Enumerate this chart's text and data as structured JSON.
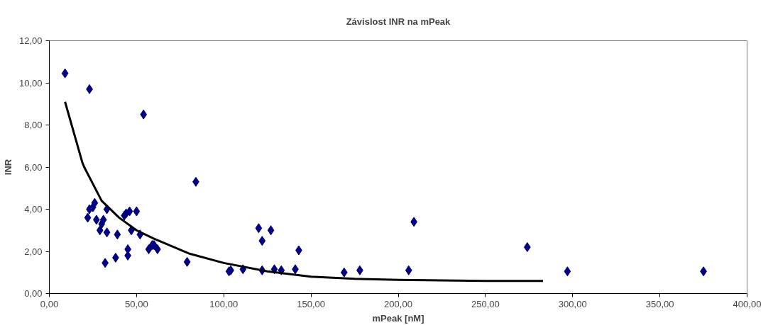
{
  "chart_data": {
    "type": "scatter",
    "title": "Závislost INR na mPeak",
    "xlabel": "mPeak [nM]",
    "ylabel": "INR",
    "xlim": [
      0,
      400
    ],
    "ylim": [
      0,
      12
    ],
    "xticks": [
      {
        "value": 0,
        "label": "0,00"
      },
      {
        "value": 50,
        "label": "50,00"
      },
      {
        "value": 100,
        "label": "100,00"
      },
      {
        "value": 150,
        "label": "150,00"
      },
      {
        "value": 200,
        "label": "200,00"
      },
      {
        "value": 250,
        "label": "250,00"
      },
      {
        "value": 300,
        "label": "300,00"
      },
      {
        "value": 350,
        "label": "350,00"
      },
      {
        "value": 400,
        "label": "400,00"
      }
    ],
    "yticks": [
      {
        "value": 0,
        "label": "0,00"
      },
      {
        "value": 2,
        "label": "2,00"
      },
      {
        "value": 4,
        "label": "4,00"
      },
      {
        "value": 6,
        "label": "6,00"
      },
      {
        "value": 8,
        "label": "8,00"
      },
      {
        "value": 10,
        "label": "10,00"
      },
      {
        "value": 12,
        "label": "12,00"
      }
    ],
    "grid": false,
    "marker": "diamond",
    "series": [
      {
        "color": "#000080",
        "x": [
          9,
          23,
          54,
          84,
          22,
          23,
          25,
          26,
          27,
          29,
          30,
          31,
          32,
          33,
          33,
          38,
          39,
          43,
          44,
          45,
          45,
          46,
          47,
          50,
          52,
          57,
          59,
          60,
          62,
          79,
          103,
          104,
          111,
          120,
          122,
          122,
          127,
          129,
          133,
          141,
          143,
          169,
          178,
          206,
          209,
          274,
          297,
          375
        ],
        "values": [
          10.45,
          9.7,
          8.5,
          5.3,
          3.6,
          4.0,
          4.1,
          4.3,
          3.5,
          3.0,
          3.3,
          3.5,
          1.45,
          2.9,
          4.0,
          1.7,
          2.8,
          3.7,
          3.8,
          2.1,
          1.8,
          3.9,
          3.0,
          3.9,
          2.8,
          2.1,
          2.3,
          2.3,
          2.1,
          1.5,
          1.05,
          1.1,
          1.15,
          3.1,
          1.1,
          2.5,
          3.0,
          1.15,
          1.1,
          1.15,
          2.05,
          1.0,
          1.1,
          1.1,
          3.4,
          2.2,
          1.05,
          1.05
        ]
      },
      {
        "type": "line",
        "color": "#000000",
        "marker": "none",
        "line_style": "solid",
        "x": [
          9,
          19,
          20,
          30,
          40,
          50,
          60,
          80,
          100,
          125,
          150,
          175,
          200,
          250,
          283
        ],
        "values": [
          9.1,
          6.2,
          6.0,
          4.4,
          3.6,
          3.0,
          2.6,
          1.9,
          1.45,
          1.05,
          0.8,
          0.7,
          0.65,
          0.6,
          0.6
        ]
      }
    ]
  }
}
